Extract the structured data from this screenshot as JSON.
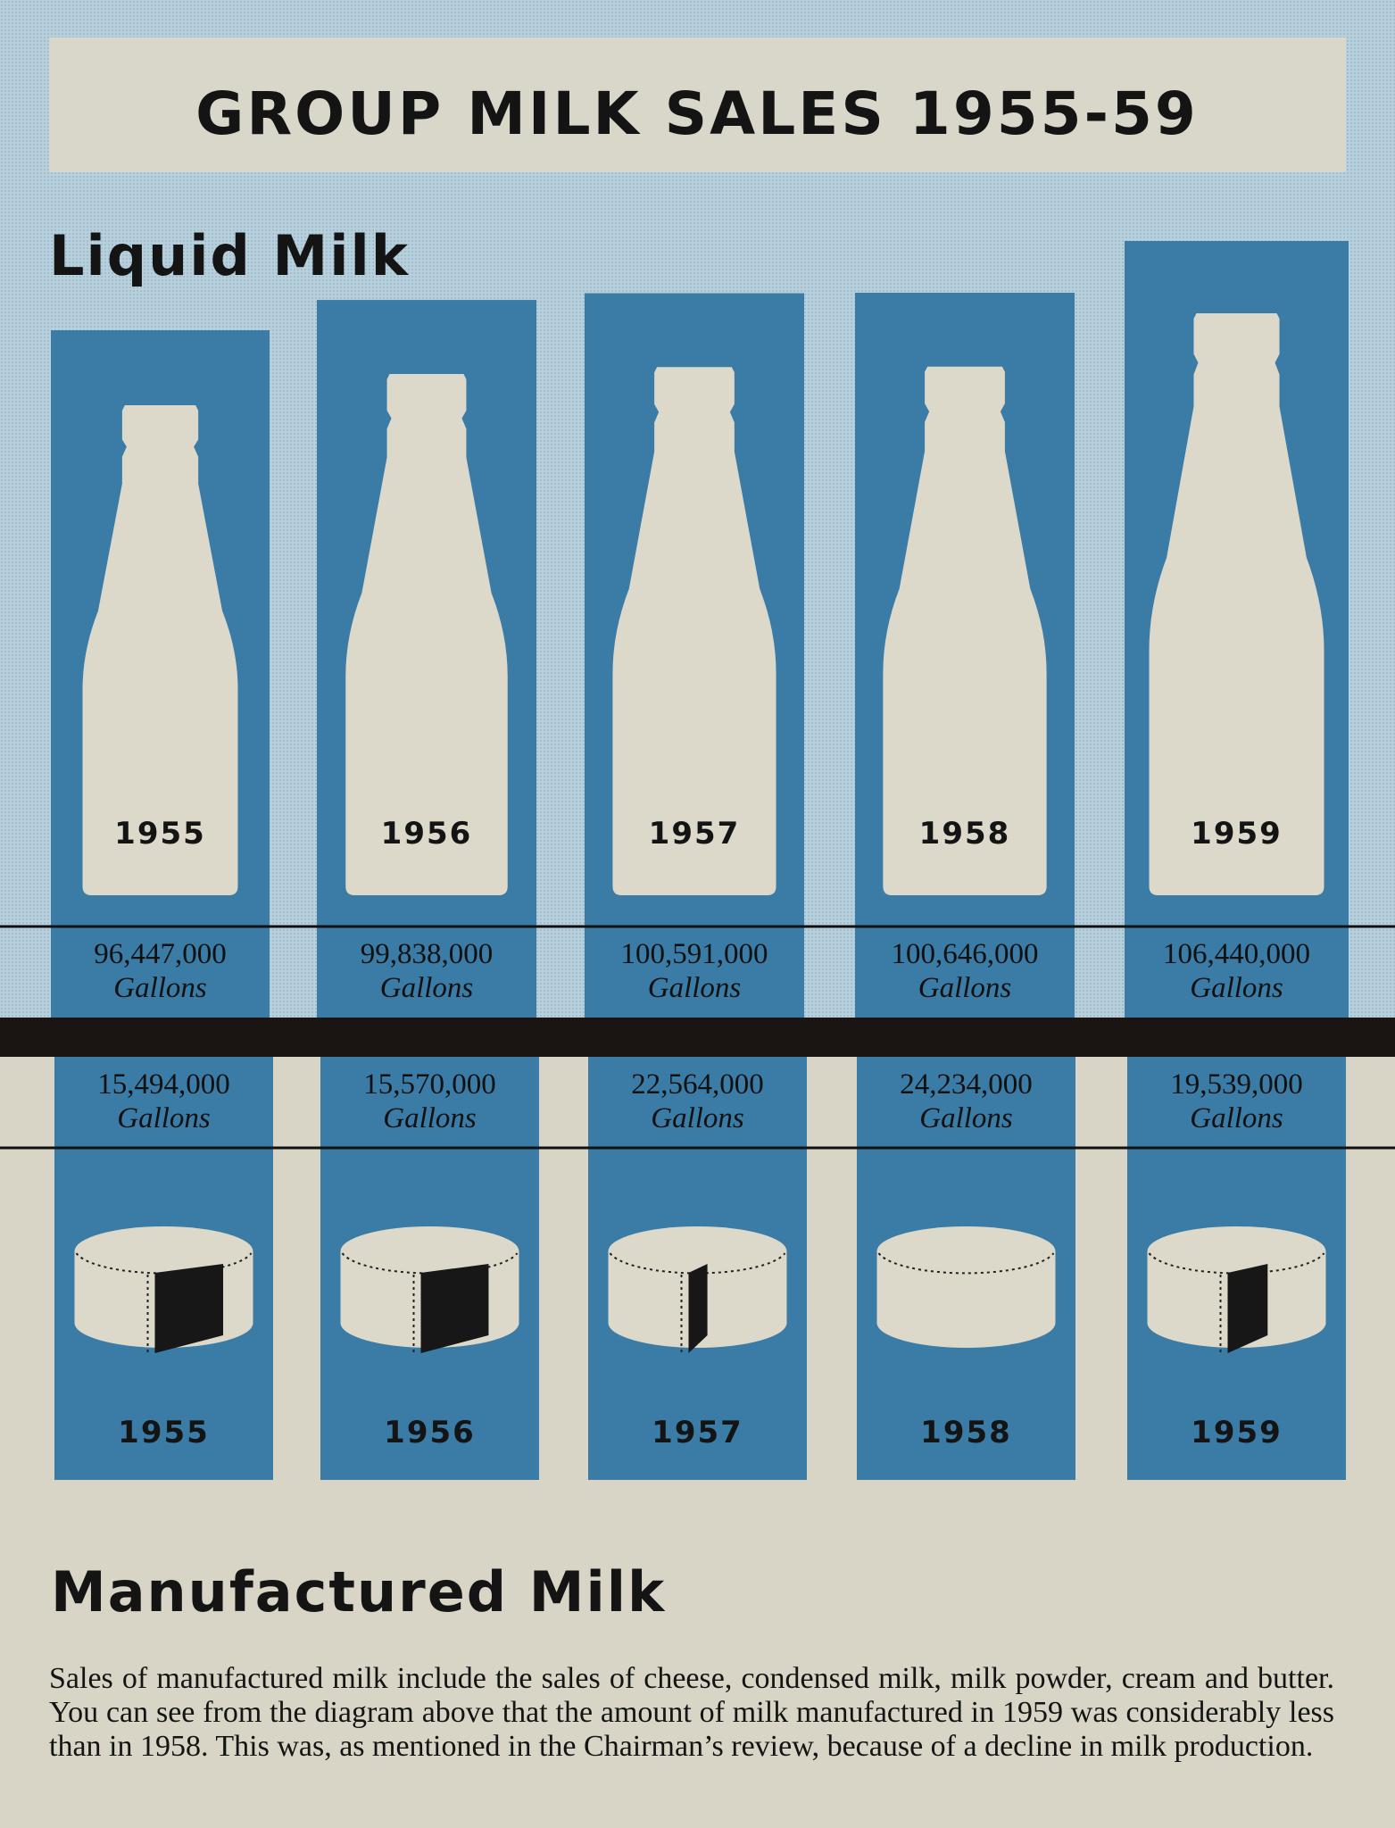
{
  "title": "GROUP MILK SALES 1955-59",
  "chart_data": [
    {
      "type": "bar",
      "title": "Liquid Milk",
      "categories": [
        "1955",
        "1956",
        "1957",
        "1958",
        "1959"
      ],
      "unit": "Gallons",
      "values": [
        96447000,
        99838000,
        100591000,
        100646000,
        106440000
      ],
      "labels": [
        "96,447,000",
        "99,838,000",
        "100,591,000",
        "100,646,000",
        "106,440,000"
      ],
      "mark": "milk-bottle"
    },
    {
      "type": "bar",
      "title": "Manufactured Milk",
      "categories": [
        "1955",
        "1956",
        "1957",
        "1958",
        "1959"
      ],
      "unit": "Gallons",
      "values": [
        15494000,
        15570000,
        22564000,
        24234000,
        19539000
      ],
      "labels": [
        "15,494,000",
        "15,570,000",
        "22,564,000",
        "24,234,000",
        "19,539,000"
      ],
      "mark": "cheese-wheel"
    }
  ],
  "description": "Sales of manufactured milk include the sales of cheese, condensed milk, milk powder, cream and butter. You can see from the diagram above that the amount of milk manufactured in 1959 was considerably less than in 1958. This was, as mentioned in the Chairman’s review, because of a decline in milk production.",
  "colors": {
    "column_blue": "#3a7ca6",
    "sky_background": "#b8d0dc",
    "paper": "#d8d5c6",
    "band": "#1a1512"
  }
}
